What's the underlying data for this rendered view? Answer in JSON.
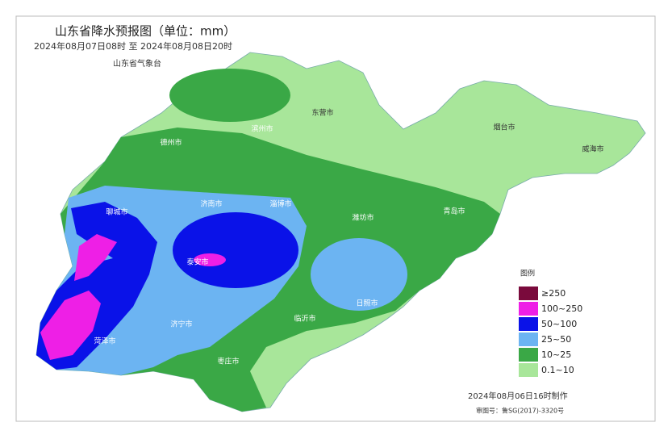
{
  "header": {
    "title": "山东省降水预报图（单位：mm）",
    "period": "2024年08月07日08时 至 2024年08月08日20时",
    "issuer": "山东省气象台"
  },
  "cities": [
    "德州市",
    "滨州市",
    "东营市",
    "烟台市",
    "威海市",
    "聊城市",
    "济南市",
    "淄博市",
    "潍坊市",
    "青岛市",
    "泰安市",
    "日照市",
    "临沂市",
    "济宁市",
    "菏泽市",
    "枣庄市"
  ],
  "legend": {
    "title": "图例",
    "items": [
      {
        "label": "≥250",
        "color": "#7a0a3c"
      },
      {
        "label": "100~250",
        "color": "#ee1fe6"
      },
      {
        "label": "50~100",
        "color": "#0a12e8"
      },
      {
        "label": "25~50",
        "color": "#6cb4f2"
      },
      {
        "label": "10~25",
        "color": "#3aa846"
      },
      {
        "label": "0.1~10",
        "color": "#a8e69a"
      }
    ]
  },
  "footer": {
    "made": "2024年08月06日16时制作",
    "approval": "审图号：鲁SG(2017)-3320号"
  }
}
